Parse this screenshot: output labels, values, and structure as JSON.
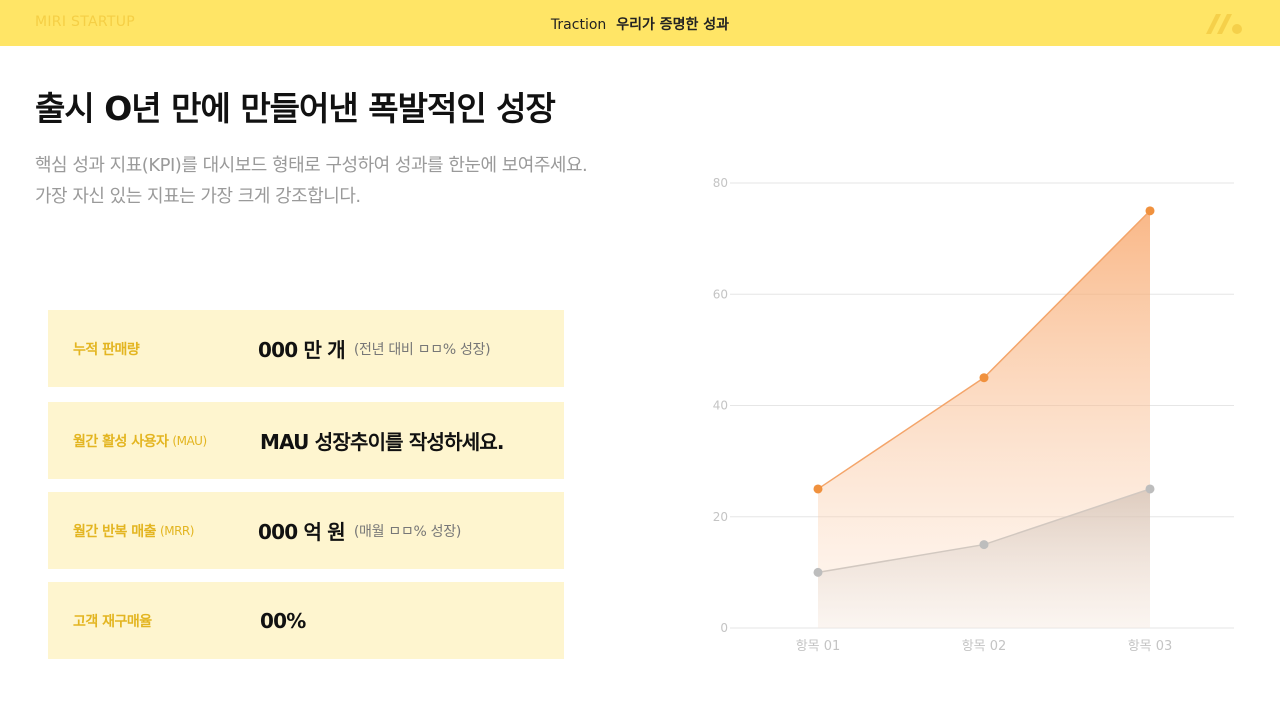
{
  "header": {
    "brand": "MIRI STARTUP",
    "section_en": "Traction",
    "section_ko": "우리가 증명한 성과",
    "logo_icon": "m-logo-icon"
  },
  "main": {
    "title": "출시 O년 만에 만들어낸 폭발적인 성장",
    "desc_line1": "핵심 성과 지표(KPI)를 대시보드 형태로 구성하여 성과를 한눈에 보여주세요.",
    "desc_line2": "가장 자신 있는 지표는 가장 크게 강조합니다."
  },
  "kpis": [
    {
      "label": "누적 판매량",
      "label_sub": "",
      "value": "000 만 개",
      "note": "(전년 대비 ㅁㅁ% 성장)"
    },
    {
      "label": "월간 활성 사용자",
      "label_sub": "(MAU)",
      "value": "MAU 성장추이를 작성하세요.",
      "note": ""
    },
    {
      "label": "월간 반복 매출",
      "label_sub": "(MRR)",
      "value": "000 억 원",
      "note": "(매월 ㅁㅁ% 성장)"
    },
    {
      "label": "고객 재구매율",
      "label_sub": "",
      "value": "00%",
      "note": ""
    }
  ],
  "colors": {
    "topbar": "#FFE566",
    "accent_yellow": "#E3B521",
    "series_orange": "#F0913E",
    "series_gray": "#BDBDBD"
  },
  "chart_data": {
    "type": "area",
    "categories": [
      "항목 01",
      "항목 02",
      "항목 03"
    ],
    "series": [
      {
        "values": [
          25,
          45,
          75
        ]
      },
      {
        "values": [
          10,
          15,
          25
        ]
      }
    ],
    "ylim": [
      0,
      80
    ],
    "yticks": [
      "0",
      "20",
      "40",
      "60",
      "80"
    ],
    "grid": true,
    "legend": "none"
  }
}
